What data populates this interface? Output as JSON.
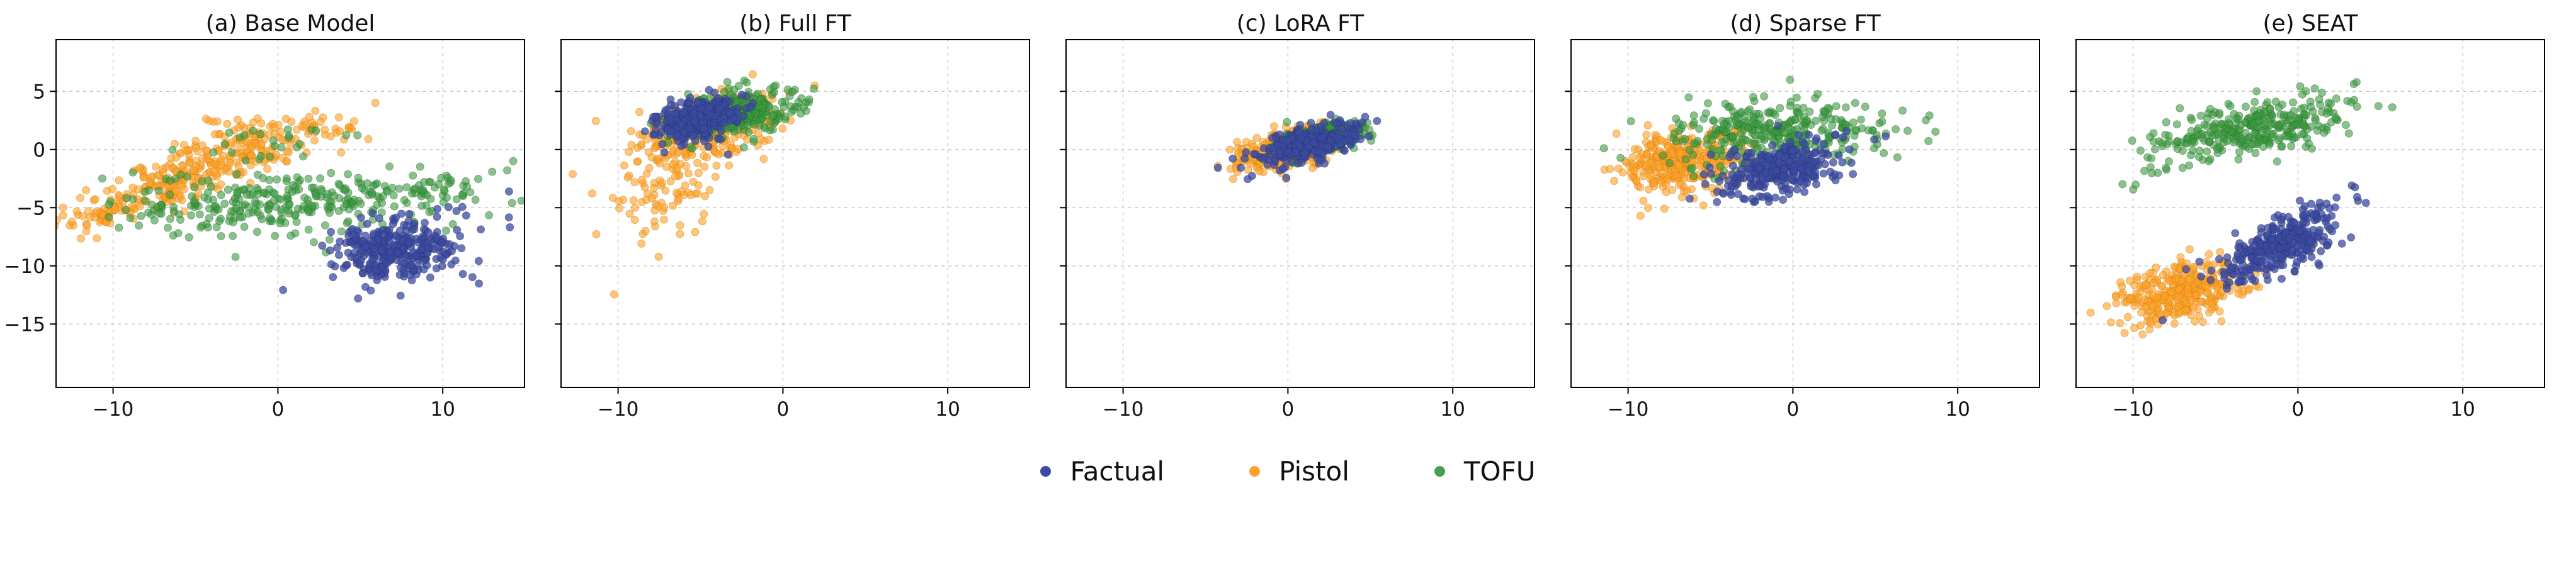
{
  "figure": {
    "background_color": "#ffffff",
    "grid": true,
    "grid_color": "#c8c8c8",
    "grid_style": "dashed",
    "axis_color": "#000000",
    "legend_position": "bottom center"
  },
  "legend": [
    {
      "label": "Factual",
      "color": "#3b4ba1"
    },
    {
      "label": "Pistol",
      "color": "#ffa227"
    },
    {
      "label": "TOFU",
      "color": "#4a9e4f"
    }
  ],
  "style": {
    "marker_radius": 6,
    "series_style": {
      "Factual": {
        "fill": "#3b4ba1",
        "stroke": "#232c63",
        "fill_opacity": 0.75,
        "zorder": 3
      },
      "Pistol": {
        "fill": "#ffa227",
        "stroke": "#c87d12",
        "fill_opacity": 0.62,
        "zorder": 1
      },
      "TOFU": {
        "fill": "#3a9a3f",
        "stroke": "#256b28",
        "fill_opacity": 0.6,
        "zorder": 2
      }
    }
  },
  "chart_data": [
    {
      "type": "scatter",
      "title": "(a) Base Model",
      "xlabel": "",
      "ylabel": "",
      "xlim": [
        -13.5,
        15
      ],
      "ylim": [
        -20.5,
        9.5
      ],
      "xticks": [
        -10,
        0,
        10
      ],
      "yticks": [
        5,
        0,
        -5,
        -10,
        -15
      ],
      "show_y_tick_labels": true,
      "series": [
        {
          "name": "Factual",
          "clusters": [
            {
              "n": 320,
              "cx": 7.0,
              "cy": -8.6,
              "sx": 1.9,
              "sy": 1.3,
              "corr": -0.05
            },
            {
              "n": 12,
              "cx": 11.5,
              "cy": -6.0,
              "sx": 1.4,
              "sy": 1.0,
              "corr": 0.2
            }
          ]
        },
        {
          "name": "Pistol",
          "clusters": [
            {
              "n": 300,
              "cx": -5.5,
              "cy": -2.3,
              "sx": 3.8,
              "sy": 2.2,
              "corr": 0.85
            },
            {
              "n": 60,
              "cx": -0.5,
              "cy": 1.5,
              "sx": 2.8,
              "sy": 1.0,
              "corr": 0.2
            },
            {
              "n": 30,
              "cx": -11.0,
              "cy": -5.8,
              "sx": 1.2,
              "sy": 0.9,
              "corr": 0.4
            }
          ]
        },
        {
          "name": "TOFU",
          "clusters": [
            {
              "n": 280,
              "cx": -0.5,
              "cy": -4.8,
              "sx": 4.8,
              "sy": 1.4,
              "corr": 0.15
            },
            {
              "n": 60,
              "cx": 8.0,
              "cy": -3.8,
              "sx": 2.8,
              "sy": 1.2,
              "corr": 0.3
            },
            {
              "n": 25,
              "cx": 0.5,
              "cy": 0.3,
              "sx": 2.5,
              "sy": 1.0,
              "corr": 0.2
            }
          ]
        }
      ]
    },
    {
      "type": "scatter",
      "title": "(b) Full FT",
      "xlabel": "",
      "ylabel": "",
      "xlim": [
        -13.5,
        15
      ],
      "ylim": [
        -20.5,
        9.5
      ],
      "xticks": [
        -10,
        0,
        10
      ],
      "yticks": [
        5,
        0,
        -5,
        -10,
        -15
      ],
      "show_y_tick_labels": false,
      "series": [
        {
          "name": "Factual",
          "clusters": [
            {
              "n": 300,
              "cx": -5.2,
              "cy": 2.6,
              "sx": 1.3,
              "sy": 0.9,
              "corr": 0.3
            }
          ]
        },
        {
          "name": "Pistol",
          "clusters": [
            {
              "n": 260,
              "cx": -4.2,
              "cy": 1.8,
              "sx": 2.3,
              "sy": 1.7,
              "corr": 0.55
            },
            {
              "n": 90,
              "cx": -6.8,
              "cy": -3.2,
              "sx": 1.9,
              "sy": 2.3,
              "corr": 0.45
            }
          ]
        },
        {
          "name": "TOFU",
          "clusters": [
            {
              "n": 330,
              "cx": -3.0,
              "cy": 3.0,
              "sx": 1.8,
              "sy": 1.1,
              "corr": 0.35
            }
          ]
        }
      ]
    },
    {
      "type": "scatter",
      "title": "(c) LoRA FT",
      "xlabel": "",
      "ylabel": "",
      "xlim": [
        -13.5,
        15
      ],
      "ylim": [
        -20.5,
        9.5
      ],
      "xticks": [
        -10,
        0,
        10
      ],
      "yticks": [
        5,
        0,
        -5,
        -10,
        -15
      ],
      "show_y_tick_labels": false,
      "series": [
        {
          "name": "Factual",
          "clusters": [
            {
              "n": 280,
              "cx": 1.2,
              "cy": 0.4,
              "sx": 1.6,
              "sy": 0.9,
              "corr": 0.5
            }
          ]
        },
        {
          "name": "Pistol",
          "clusters": [
            {
              "n": 330,
              "cx": 0.2,
              "cy": 0.1,
              "sx": 1.5,
              "sy": 0.9,
              "corr": 0.5
            }
          ]
        },
        {
          "name": "TOFU",
          "clusters": [
            {
              "n": 330,
              "cx": 1.9,
              "cy": 0.9,
              "sx": 1.3,
              "sy": 0.7,
              "corr": 0.45
            }
          ]
        }
      ]
    },
    {
      "type": "scatter",
      "title": "(d) Sparse FT",
      "xlabel": "",
      "ylabel": "",
      "xlim": [
        -13.5,
        15
      ],
      "ylim": [
        -20.5,
        9.5
      ],
      "xticks": [
        -10,
        0,
        10
      ],
      "yticks": [
        5,
        0,
        -5,
        -10,
        -15
      ],
      "show_y_tick_labels": false,
      "series": [
        {
          "name": "Factual",
          "clusters": [
            {
              "n": 300,
              "cx": -0.8,
              "cy": -1.6,
              "sx": 1.8,
              "sy": 1.2,
              "corr": 0.35
            }
          ]
        },
        {
          "name": "Pistol",
          "clusters": [
            {
              "n": 330,
              "cx": -6.8,
              "cy": -1.0,
              "sx": 1.9,
              "sy": 1.3,
              "corr": 0.15
            }
          ]
        },
        {
          "name": "TOFU",
          "clusters": [
            {
              "n": 300,
              "cx": -1.5,
              "cy": 1.4,
              "sx": 3.0,
              "sy": 1.5,
              "corr": 0.25
            },
            {
              "n": 25,
              "cx": 5.0,
              "cy": 1.6,
              "sx": 1.7,
              "sy": 0.9,
              "corr": 0.3
            }
          ]
        }
      ]
    },
    {
      "type": "scatter",
      "title": "(e) SEAT",
      "xlabel": "",
      "ylabel": "",
      "xlim": [
        -13.5,
        15
      ],
      "ylim": [
        -20.5,
        9.5
      ],
      "xticks": [
        -10,
        0,
        10
      ],
      "yticks": [
        5,
        0,
        -5,
        -10,
        -15
      ],
      "show_y_tick_labels": false,
      "series": [
        {
          "name": "Factual",
          "clusters": [
            {
              "n": 300,
              "cx": -1.2,
              "cy": -8.3,
              "sx": 1.7,
              "sy": 1.5,
              "corr": 0.65
            },
            {
              "n": 15,
              "cx": 1.6,
              "cy": -4.9,
              "sx": 1.3,
              "sy": 0.9,
              "corr": 0.4
            }
          ]
        },
        {
          "name": "Pistol",
          "clusters": [
            {
              "n": 340,
              "cx": -7.0,
              "cy": -12.2,
              "sx": 1.8,
              "sy": 1.3,
              "corr": 0.35
            }
          ]
        },
        {
          "name": "TOFU",
          "clusters": [
            {
              "n": 320,
              "cx": -2.5,
              "cy": 1.8,
              "sx": 3.0,
              "sy": 1.3,
              "corr": 0.5
            },
            {
              "n": 10,
              "cx": -8.8,
              "cy": -1.8,
              "sx": 1.3,
              "sy": 0.9,
              "corr": 0.3
            }
          ]
        }
      ]
    }
  ]
}
